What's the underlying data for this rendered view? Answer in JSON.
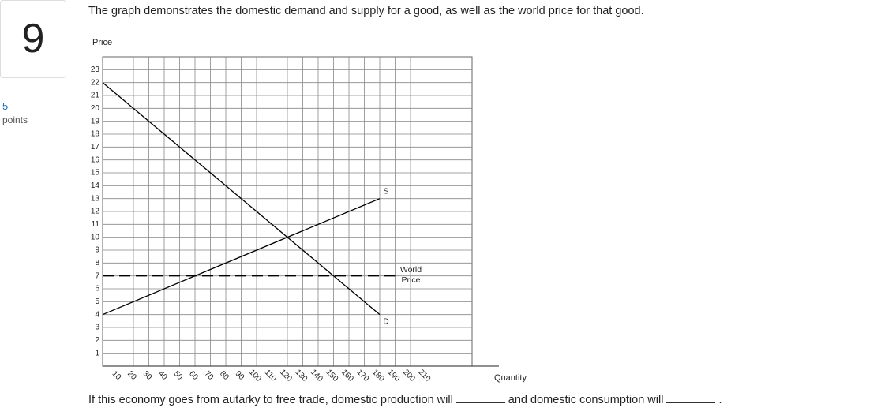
{
  "question": {
    "number": "9",
    "points_value": "5",
    "points_label": "points",
    "prompt": "The graph demonstrates the domestic demand and supply for a good, as well as the world price for that good.",
    "sentence_start": "If this economy goes from autarky to free trade, domestic production will",
    "sentence_middle": "and domestic consumption will",
    "sentence_end": "."
  },
  "chart_data": {
    "type": "line",
    "y_label": "Price",
    "x_label": "Quantity",
    "xlim": [
      0,
      240
    ],
    "ylim": [
      0,
      24
    ],
    "xticks": [
      10,
      20,
      30,
      40,
      50,
      60,
      70,
      80,
      90,
      100,
      110,
      120,
      130,
      140,
      150,
      160,
      170,
      180,
      190,
      200,
      210
    ],
    "yticks": [
      1,
      2,
      3,
      4,
      5,
      6,
      7,
      8,
      9,
      10,
      11,
      12,
      13,
      14,
      15,
      16,
      17,
      18,
      19,
      20,
      21,
      22,
      23
    ],
    "grid": true,
    "series": [
      {
        "name": "D",
        "color": "#000000",
        "style": "solid",
        "x": [
          0,
          180
        ],
        "values": [
          22,
          4
        ]
      },
      {
        "name": "S",
        "color": "#000000",
        "style": "solid",
        "x": [
          0,
          180
        ],
        "values": [
          4,
          13
        ]
      },
      {
        "name": "World Price",
        "color": "#000000",
        "style": "dashed",
        "x": [
          0,
          190
        ],
        "values": [
          7,
          7
        ]
      }
    ]
  }
}
